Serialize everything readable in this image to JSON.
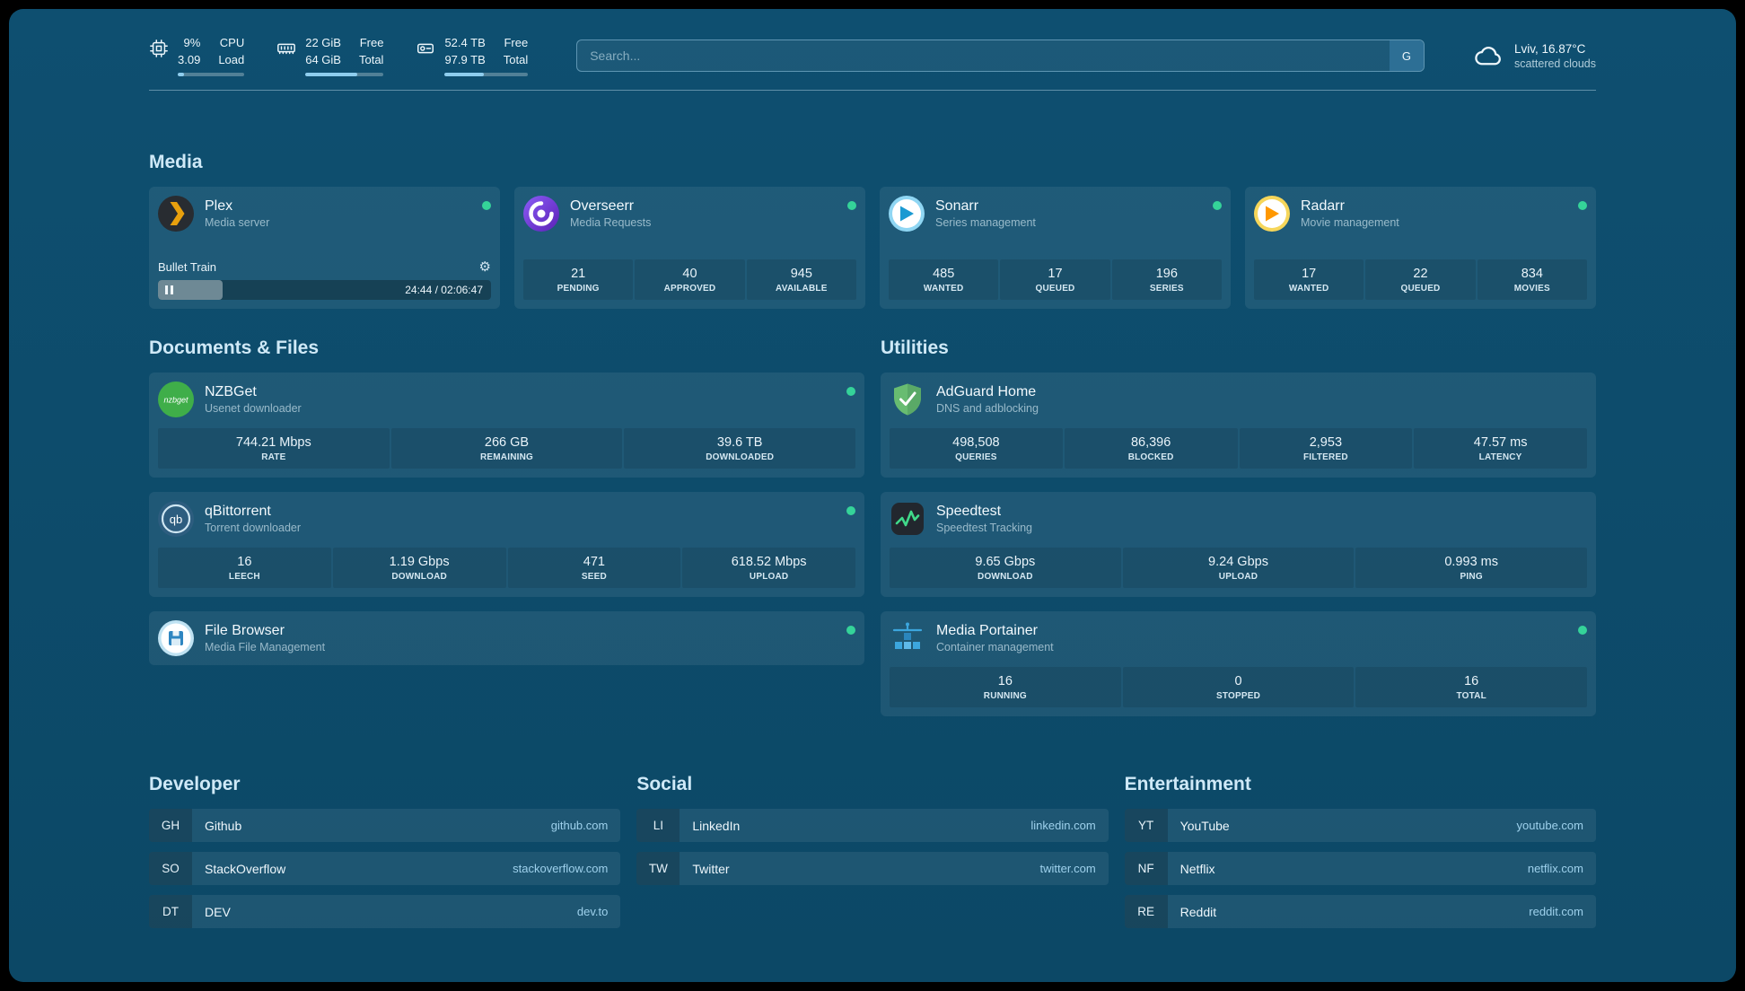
{
  "topbar": {
    "cpu": {
      "v1": "9%",
      "v2": "3.09",
      "l1": "CPU",
      "l2": "Load",
      "progress": 9
    },
    "memory": {
      "v1": "22 GiB",
      "v2": "64 GiB",
      "l1": "Free",
      "l2": "Total",
      "progress": 66
    },
    "disk": {
      "v1": "52.4 TB",
      "v2": "97.9 TB",
      "l1": "Free",
      "l2": "Total",
      "progress": 47
    },
    "search": {
      "placeholder": "Search...",
      "button": "G"
    },
    "weather": {
      "location": "Lviv, 16.87°C",
      "condition": "scattered clouds"
    }
  },
  "groups": {
    "media": {
      "title": "Media",
      "services": [
        {
          "name": "Plex",
          "desc": "Media server",
          "status": "online",
          "player": {
            "title": "Bullet Train",
            "time": "24:44 / 02:06:47",
            "progress": 19.5
          }
        },
        {
          "name": "Overseerr",
          "desc": "Media Requests",
          "status": "online",
          "stats": [
            {
              "v": "21",
              "l": "PENDING"
            },
            {
              "v": "40",
              "l": "APPROVED"
            },
            {
              "v": "945",
              "l": "AVAILABLE"
            }
          ]
        },
        {
          "name": "Sonarr",
          "desc": "Series management",
          "status": "online",
          "stats": [
            {
              "v": "485",
              "l": "WANTED"
            },
            {
              "v": "17",
              "l": "QUEUED"
            },
            {
              "v": "196",
              "l": "SERIES"
            }
          ]
        },
        {
          "name": "Radarr",
          "desc": "Movie management",
          "status": "online",
          "stats": [
            {
              "v": "17",
              "l": "WANTED"
            },
            {
              "v": "22",
              "l": "QUEUED"
            },
            {
              "v": "834",
              "l": "MOVIES"
            }
          ]
        }
      ]
    },
    "documents": {
      "title": "Documents & Files",
      "services": [
        {
          "name": "NZBGet",
          "desc": "Usenet downloader",
          "status": "online",
          "stats": [
            {
              "v": "744.21 Mbps",
              "l": "RATE"
            },
            {
              "v": "266 GB",
              "l": "REMAINING"
            },
            {
              "v": "39.6 TB",
              "l": "DOWNLOADED"
            }
          ]
        },
        {
          "name": "qBittorrent",
          "desc": "Torrent downloader",
          "status": "online",
          "stats": [
            {
              "v": "16",
              "l": "LEECH"
            },
            {
              "v": "1.19 Gbps",
              "l": "DOWNLOAD"
            },
            {
              "v": "471",
              "l": "SEED"
            },
            {
              "v": "618.52 Mbps",
              "l": "UPLOAD"
            }
          ]
        },
        {
          "name": "File Browser",
          "desc": "Media File Management",
          "status": "online",
          "stats": []
        }
      ]
    },
    "utilities": {
      "title": "Utilities",
      "services": [
        {
          "name": "AdGuard Home",
          "desc": "DNS and adblocking",
          "status": "online",
          "stats": [
            {
              "v": "498,508",
              "l": "QUERIES"
            },
            {
              "v": "86,396",
              "l": "BLOCKED"
            },
            {
              "v": "2,953",
              "l": "FILTERED"
            },
            {
              "v": "47.57 ms",
              "l": "LATENCY"
            }
          ]
        },
        {
          "name": "Speedtest",
          "desc": "Speedtest Tracking",
          "status": "online",
          "stats": [
            {
              "v": "9.65 Gbps",
              "l": "DOWNLOAD"
            },
            {
              "v": "9.24 Gbps",
              "l": "UPLOAD"
            },
            {
              "v": "0.993 ms",
              "l": "PING"
            }
          ]
        },
        {
          "name": "Media Portainer",
          "desc": "Container management",
          "status": "online",
          "stats": [
            {
              "v": "16",
              "l": "RUNNING"
            },
            {
              "v": "0",
              "l": "STOPPED"
            },
            {
              "v": "16",
              "l": "TOTAL"
            }
          ]
        }
      ]
    }
  },
  "bookmarks": {
    "developer": {
      "title": "Developer",
      "items": [
        {
          "abbr": "GH",
          "name": "Github",
          "domain": "github.com"
        },
        {
          "abbr": "SO",
          "name": "StackOverflow",
          "domain": "stackoverflow.com"
        },
        {
          "abbr": "DT",
          "name": "DEV",
          "domain": "dev.to"
        }
      ]
    },
    "social": {
      "title": "Social",
      "items": [
        {
          "abbr": "LI",
          "name": "LinkedIn",
          "domain": "linkedin.com"
        },
        {
          "abbr": "TW",
          "name": "Twitter",
          "domain": "twitter.com"
        }
      ]
    },
    "entertainment": {
      "title": "Entertainment",
      "items": [
        {
          "abbr": "YT",
          "name": "YouTube",
          "domain": "youtube.com"
        },
        {
          "abbr": "NF",
          "name": "Netflix",
          "domain": "netflix.com"
        },
        {
          "abbr": "RE",
          "name": "Reddit",
          "domain": "reddit.com"
        }
      ]
    }
  },
  "icons": {
    "gear": "⚙",
    "nzbget": "nzbget",
    "qb": "qb"
  },
  "colors": {
    "background": "#0d4c6d",
    "card": "rgba(255,255,255,0.075)",
    "accent": "#8ecdee",
    "status_online": "#35d399"
  }
}
